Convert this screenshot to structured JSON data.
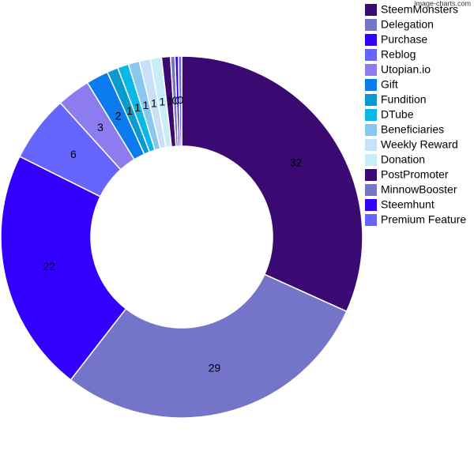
{
  "chart_data": {
    "type": "pie",
    "watermark": "image-charts.com",
    "categories": [
      "SteemMonsters",
      "Delegation",
      "Purchase",
      "Reblog",
      "Utopian.io",
      "Gift",
      "Fundition",
      "DTube",
      "Beneficiaries",
      "Weekly Reward",
      "Donation",
      "PostPromoter",
      "MinnowBooster",
      "Steemhunt",
      "Premium Feature"
    ],
    "values": [
      32,
      29,
      22,
      6,
      3,
      2,
      1,
      1,
      1,
      1,
      1,
      0.8,
      0.4,
      0.3,
      0.3
    ],
    "value_labels": [
      "32",
      "29",
      "22",
      "6",
      "3",
      "2",
      "1",
      "1",
      "1",
      "1",
      "1",
      "1",
      "0",
      "0",
      "0"
    ],
    "colors": [
      "#3a0a72",
      "#7474c8",
      "#3300ff",
      "#6666ff",
      "#8c7cf0",
      "#0a7cf0",
      "#0a9ad0",
      "#0ab8e8",
      "#88c8f0",
      "#c8e0f8",
      "#c8ecf8",
      "#3a0a72",
      "#7474c8",
      "#3300ff",
      "#6666ff"
    ],
    "donut": true,
    "legend": "right"
  }
}
